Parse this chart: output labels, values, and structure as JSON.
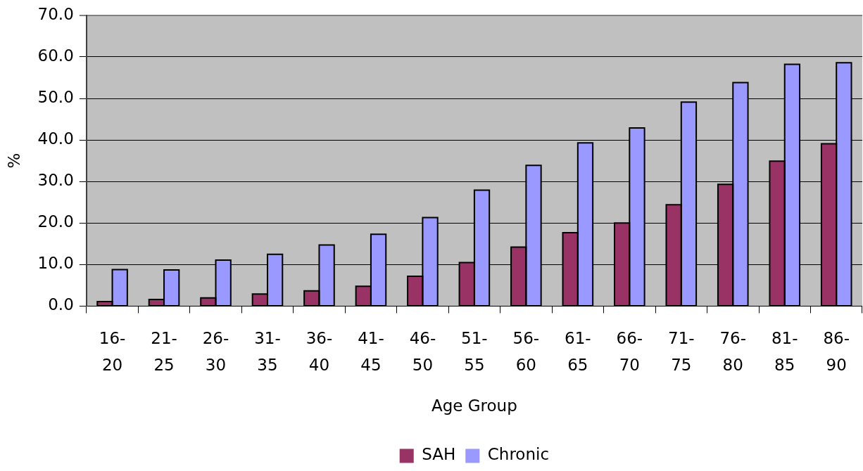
{
  "chart_data": {
    "type": "bar",
    "xlabel": "Age Group",
    "ylabel": "%",
    "categories": [
      "16-20",
      "21-25",
      "26-30",
      "31-35",
      "36-40",
      "41-45",
      "46-50",
      "51-55",
      "56-60",
      "61-65",
      "66-70",
      "71-75",
      "76-80",
      "81-85",
      "86-90"
    ],
    "series": [
      {
        "name": "SAH",
        "color": "#993366",
        "values": [
          1.1,
          1.6,
          2.0,
          2.9,
          3.7,
          4.8,
          7.2,
          10.5,
          14.2,
          17.7,
          20.0,
          24.4,
          29.3,
          34.9,
          39.1
        ]
      },
      {
        "name": "Chronic",
        "color": "#9999ff",
        "values": [
          8.8,
          8.7,
          11.1,
          12.5,
          14.7,
          17.3,
          21.3,
          27.9,
          33.9,
          39.3,
          42.9,
          49.1,
          53.8,
          58.2,
          58.6
        ]
      }
    ],
    "ylim": [
      0,
      70
    ],
    "yticks": [
      {
        "value": 0,
        "label": "0.0"
      },
      {
        "value": 10,
        "label": "10.0"
      },
      {
        "value": 20,
        "label": "20.0"
      },
      {
        "value": 30,
        "label": "30.0"
      },
      {
        "value": 40,
        "label": "40.0"
      },
      {
        "value": 50,
        "label": "50.0"
      },
      {
        "value": 60,
        "label": "60.0"
      },
      {
        "value": 70,
        "label": "70.0"
      }
    ],
    "grid": "y",
    "legend": "bottom"
  }
}
